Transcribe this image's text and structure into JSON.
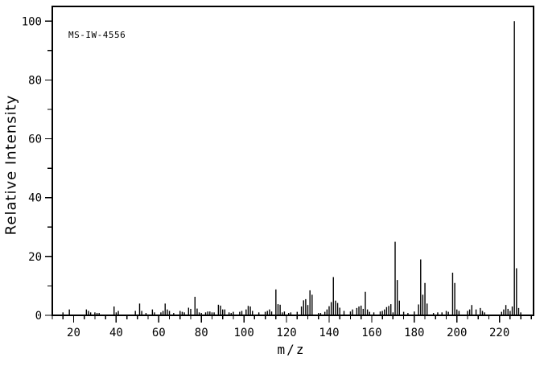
{
  "chart_data": {
    "type": "bar",
    "subtype": "mass-spectrum-stick-plot",
    "title": "MS-IW-4556",
    "xlabel": "m/z",
    "ylabel": "Relative Intensity",
    "xlim": [
      10,
      236
    ],
    "ylim": [
      0,
      105
    ],
    "x_major_ticks": [
      20,
      40,
      60,
      80,
      100,
      120,
      140,
      160,
      180,
      200,
      220
    ],
    "x_minor_tick_step": 5,
    "y_major_ticks": [
      0,
      20,
      40,
      60,
      80,
      100
    ],
    "y_minor_tick_step": 10,
    "grid": "off",
    "legend": "none",
    "colors": {
      "foreground": "#000000",
      "background": "#ffffff"
    },
    "peaks": [
      [
        15,
        1
      ],
      [
        18,
        2
      ],
      [
        26,
        2
      ],
      [
        27,
        1.5
      ],
      [
        28,
        1
      ],
      [
        30,
        1
      ],
      [
        31,
        0.8
      ],
      [
        32,
        0.8
      ],
      [
        39,
        3
      ],
      [
        40,
        1
      ],
      [
        41,
        1.5
      ],
      [
        49,
        1.5
      ],
      [
        51,
        4
      ],
      [
        52,
        1.5
      ],
      [
        54,
        0.8
      ],
      [
        57,
        2
      ],
      [
        58,
        1
      ],
      [
        61,
        1
      ],
      [
        62,
        1.5
      ],
      [
        63,
        4
      ],
      [
        64,
        2
      ],
      [
        65,
        1.5
      ],
      [
        67,
        0.8
      ],
      [
        70,
        1.5
      ],
      [
        71,
        1.2
      ],
      [
        72,
        1
      ],
      [
        74,
        2.6
      ],
      [
        75,
        2.2
      ],
      [
        77,
        6.3
      ],
      [
        78,
        2.3
      ],
      [
        79,
        1
      ],
      [
        80,
        0.8
      ],
      [
        82,
        1
      ],
      [
        83,
        1.3
      ],
      [
        84,
        1.3
      ],
      [
        85,
        1
      ],
      [
        86,
        1
      ],
      [
        88,
        3.6
      ],
      [
        89,
        3.3
      ],
      [
        90,
        2
      ],
      [
        91,
        2
      ],
      [
        93,
        1
      ],
      [
        94,
        0.8
      ],
      [
        95,
        1.2
      ],
      [
        98,
        1.2
      ],
      [
        99,
        1.5
      ],
      [
        101,
        2
      ],
      [
        102,
        3.2
      ],
      [
        103,
        3
      ],
      [
        104,
        1.5
      ],
      [
        107,
        1
      ],
      [
        110,
        1.2
      ],
      [
        111,
        1.5
      ],
      [
        112,
        2
      ],
      [
        113,
        1.3
      ],
      [
        115,
        8.8
      ],
      [
        116,
        3.8
      ],
      [
        117,
        3.6
      ],
      [
        118,
        1
      ],
      [
        119,
        1.3
      ],
      [
        121,
        0.8
      ],
      [
        122,
        1
      ],
      [
        125,
        1.2
      ],
      [
        127,
        3
      ],
      [
        128,
        5.1
      ],
      [
        129,
        5.5
      ],
      [
        130,
        3.5
      ],
      [
        131,
        8.5
      ],
      [
        132,
        7
      ],
      [
        135,
        0.8
      ],
      [
        136,
        0.8
      ],
      [
        138,
        1.2
      ],
      [
        139,
        2
      ],
      [
        140,
        3.1
      ],
      [
        141,
        4.5
      ],
      [
        142,
        13
      ],
      [
        143,
        5
      ],
      [
        144,
        4.2
      ],
      [
        145,
        2.6
      ],
      [
        147,
        1.5
      ],
      [
        150,
        1.3
      ],
      [
        151,
        2
      ],
      [
        153,
        2.5
      ],
      [
        154,
        3
      ],
      [
        155,
        3.3
      ],
      [
        156,
        2.2
      ],
      [
        157,
        8
      ],
      [
        158,
        2
      ],
      [
        159,
        1.2
      ],
      [
        161,
        1
      ],
      [
        164,
        1.3
      ],
      [
        165,
        1.5
      ],
      [
        166,
        2
      ],
      [
        167,
        2.8
      ],
      [
        168,
        3.2
      ],
      [
        169,
        3.8
      ],
      [
        170,
        1
      ],
      [
        171,
        25
      ],
      [
        172,
        12
      ],
      [
        173,
        5
      ],
      [
        175,
        1.2
      ],
      [
        177,
        0.8
      ],
      [
        180,
        1.3
      ],
      [
        182,
        3.7
      ],
      [
        183,
        19
      ],
      [
        184,
        7
      ],
      [
        185,
        11
      ],
      [
        186,
        4
      ],
      [
        189,
        0.8
      ],
      [
        191,
        1
      ],
      [
        193,
        1
      ],
      [
        195,
        1.5
      ],
      [
        196,
        1.2
      ],
      [
        198,
        14.5
      ],
      [
        199,
        11
      ],
      [
        200,
        2
      ],
      [
        201,
        1.5
      ],
      [
        205,
        1.5
      ],
      [
        206,
        2
      ],
      [
        207,
        3.5
      ],
      [
        209,
        2
      ],
      [
        211,
        2.5
      ],
      [
        212,
        1.5
      ],
      [
        213,
        1
      ],
      [
        221,
        1.2
      ],
      [
        222,
        2
      ],
      [
        223,
        3.5
      ],
      [
        224,
        2.2
      ],
      [
        225,
        1.5
      ],
      [
        226,
        3
      ],
      [
        227,
        100
      ],
      [
        228,
        16
      ],
      [
        229,
        2.5
      ],
      [
        230,
        1
      ]
    ]
  }
}
